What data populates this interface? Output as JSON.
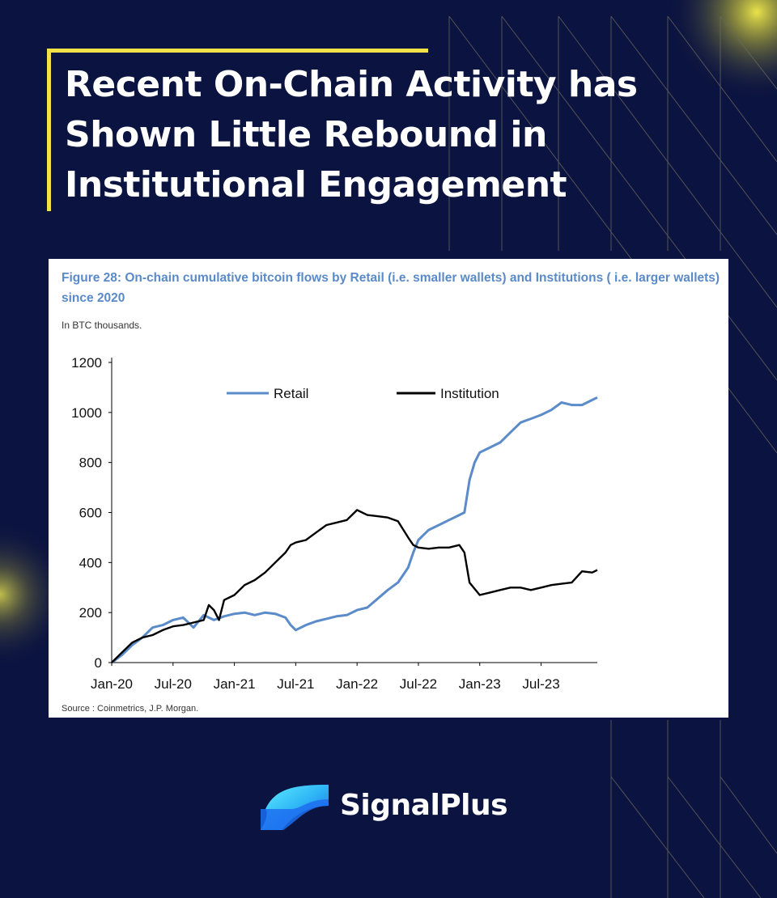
{
  "headline": {
    "lines": [
      "Recent On-Chain Activity has",
      "Shown Little Rebound in",
      "Institutional Engagement"
    ]
  },
  "figure": {
    "title": "Figure 28: On-chain cumulative bitcoin flows by Retail (i.e. smaller wallets) and Institutions ( i.e. larger wallets) since 2020",
    "units": "In BTC thousands.",
    "source": "Source : Coinmetrics, J.P. Morgan."
  },
  "brand": {
    "name": "SignalPlus",
    "icon": "signalplus-logo-icon"
  },
  "colors": {
    "background": "#0b1340",
    "accent_yellow": "#f2e24a",
    "retail": "#5b8bc9",
    "institution": "#000000",
    "title_blue": "#5a8ac8"
  },
  "chart_data": {
    "type": "line",
    "title": "Figure 28: On-chain cumulative bitcoin flows by Retail (i.e. smaller wallets) and Institutions ( i.e. larger wallets) since 2020",
    "xlabel": "",
    "ylabel": "In BTC thousands.",
    "ylim": [
      0,
      1200
    ],
    "yticks": [
      0,
      200,
      400,
      600,
      800,
      1000,
      1200
    ],
    "xlim": [
      0,
      47.5
    ],
    "xticks": [
      {
        "x": 0,
        "label": "Jan-20"
      },
      {
        "x": 6,
        "label": "Jul-20"
      },
      {
        "x": 12,
        "label": "Jan-21"
      },
      {
        "x": 18,
        "label": "Jul-21"
      },
      {
        "x": 24,
        "label": "Jan-22"
      },
      {
        "x": 30,
        "label": "Jul-22"
      },
      {
        "x": 36,
        "label": "Jan-23"
      },
      {
        "x": 42,
        "label": "Jul-23"
      }
    ],
    "x_units": "months since Jan-20",
    "legend_position": "top",
    "series": [
      {
        "name": "Retail",
        "x": [
          0,
          1,
          2,
          3,
          4,
          5,
          6,
          7,
          8,
          9,
          10,
          11,
          12,
          13,
          14,
          15,
          16,
          17,
          17.5,
          18,
          19,
          20,
          21,
          22,
          23,
          24,
          25,
          26,
          27,
          28,
          29,
          29.5,
          30,
          31,
          32,
          33,
          34,
          34.5,
          35,
          35.5,
          36,
          37,
          38,
          39,
          40,
          41,
          42,
          43,
          44,
          45,
          46,
          47,
          47.5
        ],
        "values": [
          0,
          30,
          70,
          100,
          140,
          150,
          170,
          180,
          140,
          190,
          170,
          185,
          195,
          200,
          190,
          200,
          195,
          180,
          150,
          130,
          150,
          165,
          175,
          185,
          190,
          210,
          220,
          255,
          290,
          320,
          380,
          440,
          490,
          530,
          550,
          570,
          590,
          600,
          730,
          800,
          840,
          860,
          880,
          920,
          960,
          975,
          990,
          1010,
          1040,
          1030,
          1030,
          1050,
          1060
        ]
      },
      {
        "name": "Institution",
        "x": [
          0,
          1,
          2,
          3,
          4,
          5,
          6,
          7,
          8,
          9,
          9.5,
          10,
          10.5,
          11,
          12,
          13,
          14,
          15,
          16,
          17,
          17.5,
          18,
          19,
          20,
          21,
          22,
          23,
          24,
          25,
          26,
          27,
          28,
          29,
          29.5,
          30,
          31,
          32,
          33,
          34,
          34.5,
          35,
          36,
          37,
          38,
          39,
          40,
          41,
          42,
          43,
          44,
          45,
          46,
          47,
          47.5
        ],
        "values": [
          0,
          40,
          80,
          100,
          110,
          130,
          145,
          150,
          160,
          170,
          230,
          210,
          170,
          250,
          270,
          310,
          330,
          360,
          400,
          440,
          470,
          480,
          490,
          520,
          550,
          560,
          570,
          610,
          590,
          585,
          580,
          565,
          500,
          470,
          460,
          455,
          460,
          460,
          470,
          440,
          320,
          270,
          280,
          290,
          300,
          300,
          290,
          300,
          310,
          315,
          320,
          365,
          360,
          370
        ]
      }
    ]
  }
}
